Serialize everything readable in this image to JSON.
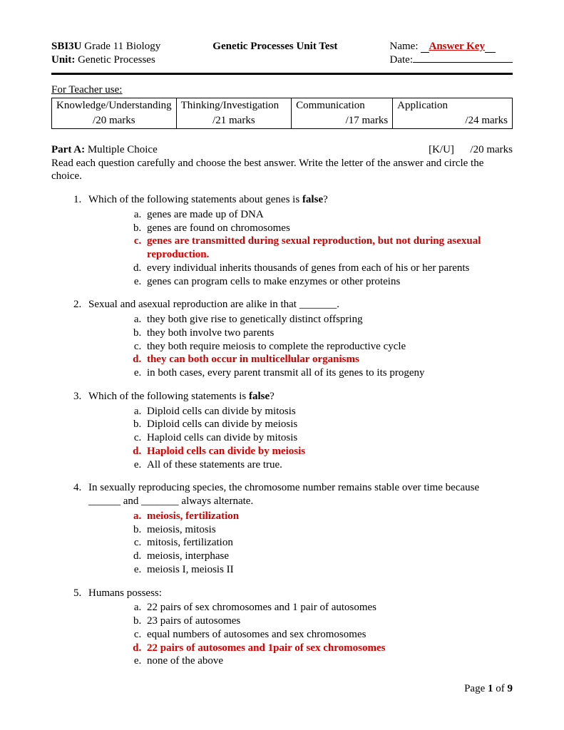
{
  "header": {
    "course_code": "SBI3U",
    "course_name": "Grade 11 Biology",
    "unit_label": "Unit:",
    "unit_name": "Genetic Processes",
    "title": "Genetic Processes Unit Test",
    "name_label": "Name:",
    "date_label": "Date:",
    "answer_key": "Answer Key"
  },
  "rubric": {
    "teacher_use": "For Teacher use:",
    "cols": [
      {
        "label": "Knowledge/Understanding",
        "marks": "/20 marks"
      },
      {
        "label": "Thinking/Investigation",
        "marks": "/21 marks"
      },
      {
        "label": "Communication",
        "marks": "/17 marks"
      },
      {
        "label": "Application",
        "marks": "/24 marks"
      }
    ]
  },
  "partA": {
    "label": "Part A:",
    "title": "Multiple Choice",
    "code": "[K/U]",
    "marks": "/20 marks",
    "instructions": "Read each question carefully and choose the best answer.  Write the letter of the answer and circle the choice."
  },
  "questions": [
    {
      "stem_pre": "Which of the following statements about genes is ",
      "stem_bold": "false",
      "stem_post": "?",
      "choices": [
        {
          "text": "genes are made up of DNA",
          "correct": false
        },
        {
          "text": "genes are found on chromosomes",
          "correct": false
        },
        {
          "text": "genes are transmitted during sexual reproduction, but not during asexual reproduction.",
          "correct": true
        },
        {
          "text": "every individual inherits thousands of genes from each of his or her parents",
          "correct": false
        },
        {
          "text": "genes can program cells to make enzymes or other proteins",
          "correct": false
        }
      ]
    },
    {
      "stem_pre": "Sexual and asexual reproduction are alike in that _______.",
      "stem_bold": "",
      "stem_post": "",
      "choices": [
        {
          "text": "they both give rise to genetically distinct offspring",
          "correct": false
        },
        {
          "text": "they both involve two parents",
          "correct": false
        },
        {
          "text": "they both require meiosis to complete the reproductive cycle",
          "correct": false
        },
        {
          "text": "they can both occur in multicellular organisms",
          "correct": true
        },
        {
          "text": "in both cases, every parent transmit all of its genes to its progeny",
          "correct": false
        }
      ]
    },
    {
      "stem_pre": "Which of the following statements is ",
      "stem_bold": "false",
      "stem_post": "?",
      "choices": [
        {
          "text": "Diploid cells can divide by mitosis",
          "correct": false
        },
        {
          "text": "Diploid cells can divide by meiosis",
          "correct": false
        },
        {
          "text": "Haploid cells can divide by mitosis",
          "correct": false
        },
        {
          "text": "Haploid cells can divide by meiosis",
          "correct": true
        },
        {
          "text": "All of these statements are true.",
          "correct": false
        }
      ]
    },
    {
      "stem_pre": "In sexually reproducing species, the chromosome number remains stable over time because ______ and _______ always alternate.",
      "stem_bold": "",
      "stem_post": "",
      "choices": [
        {
          "text": "meiosis, fertilization",
          "correct": true
        },
        {
          "text": "meiosis, mitosis",
          "correct": false
        },
        {
          "text": "mitosis, fertilization",
          "correct": false
        },
        {
          "text": "meiosis, interphase",
          "correct": false
        },
        {
          "text": "meiosis I, meiosis II",
          "correct": false
        }
      ]
    },
    {
      "stem_pre": "Humans possess:",
      "stem_bold": "",
      "stem_post": "",
      "choices": [
        {
          "text": "22 pairs of sex chromosomes and 1 pair of autosomes",
          "correct": false
        },
        {
          "text": "23 pairs of autosomes",
          "correct": false
        },
        {
          "text": "equal numbers of autosomes and sex chromosomes",
          "correct": false
        },
        {
          "text": "22 pairs of autosomes and 1pair of sex chromosomes",
          "correct": true
        },
        {
          "text": "none of the above",
          "correct": false
        }
      ]
    }
  ],
  "footer": {
    "page_label": "Page",
    "of_label": "of",
    "page_num": "1",
    "total": "9"
  }
}
